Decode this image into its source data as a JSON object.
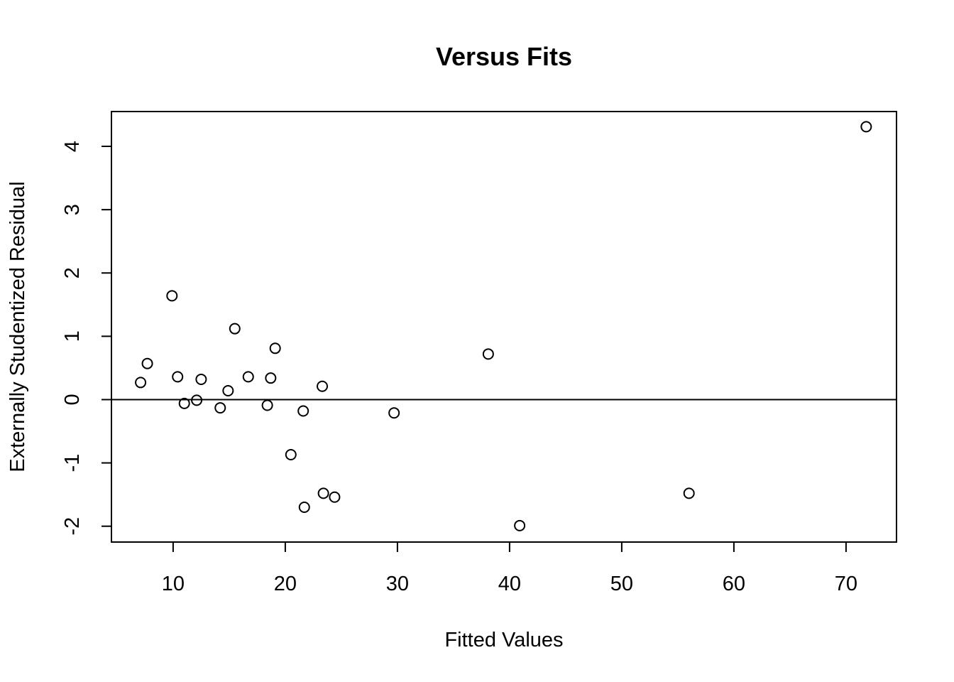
{
  "chart_data": {
    "type": "scatter",
    "title": "Versus Fits",
    "xlabel": "Fitted Values",
    "ylabel": "Externally Studentized Residual",
    "xlim": [
      4.5,
      74.5
    ],
    "ylim": [
      -2.25,
      4.55
    ],
    "xticks": [
      10,
      20,
      30,
      40,
      50,
      60,
      70
    ],
    "xtick_labels": [
      "10",
      "20",
      "30",
      "40",
      "50",
      "60",
      "70"
    ],
    "yticks": [
      -2,
      -1,
      0,
      1,
      2,
      3,
      4
    ],
    "ytick_labels": [
      "-2",
      "-1",
      "0",
      "1",
      "2",
      "3",
      "4"
    ],
    "reference_line_y": 0,
    "grid": false,
    "marker": "open-circle",
    "points": [
      {
        "x": 7.1,
        "y": 0.27
      },
      {
        "x": 7.7,
        "y": 0.57
      },
      {
        "x": 9.9,
        "y": 1.64
      },
      {
        "x": 10.4,
        "y": 0.36
      },
      {
        "x": 11.0,
        "y": -0.06
      },
      {
        "x": 12.1,
        "y": -0.01
      },
      {
        "x": 12.5,
        "y": 0.32
      },
      {
        "x": 14.2,
        "y": -0.13
      },
      {
        "x": 14.9,
        "y": 0.14
      },
      {
        "x": 15.5,
        "y": 1.12
      },
      {
        "x": 16.7,
        "y": 0.36
      },
      {
        "x": 18.4,
        "y": -0.09
      },
      {
        "x": 18.7,
        "y": 0.34
      },
      {
        "x": 19.1,
        "y": 0.81
      },
      {
        "x": 20.5,
        "y": -0.87
      },
      {
        "x": 21.6,
        "y": -0.18
      },
      {
        "x": 21.7,
        "y": -1.7
      },
      {
        "x": 23.3,
        "y": 0.21
      },
      {
        "x": 23.4,
        "y": -1.48
      },
      {
        "x": 24.4,
        "y": -1.54
      },
      {
        "x": 29.7,
        "y": -0.21
      },
      {
        "x": 38.1,
        "y": 0.72
      },
      {
        "x": 40.9,
        "y": -1.99
      },
      {
        "x": 56.0,
        "y": -1.48
      },
      {
        "x": 71.8,
        "y": 4.31
      }
    ]
  }
}
